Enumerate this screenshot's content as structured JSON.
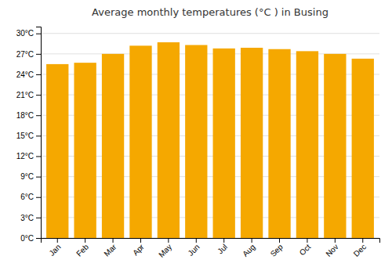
{
  "chart_data": {
    "type": "bar",
    "title": "Average monthly temperatures (°C ) in Busing",
    "categories": [
      "Jan",
      "Feb",
      "Mar",
      "Apr",
      "May",
      "Jun",
      "Jul",
      "Aug",
      "Sep",
      "Oct",
      "Nov",
      "Dec"
    ],
    "values": [
      25.5,
      25.7,
      27.0,
      28.2,
      28.7,
      28.3,
      27.8,
      27.9,
      27.7,
      27.4,
      27.0,
      26.3
    ],
    "color": "#F5A800",
    "ylim": [
      0,
      31
    ],
    "yticks": [
      {
        "value": 0,
        "label": "0°C"
      },
      {
        "value": 3,
        "label": "3°C"
      },
      {
        "value": 6,
        "label": "6°C"
      },
      {
        "value": 9,
        "label": "9°C"
      },
      {
        "value": 12,
        "label": "12°C"
      },
      {
        "value": 15,
        "label": "15°C"
      },
      {
        "value": 18,
        "label": "18°C"
      },
      {
        "value": 21,
        "label": "21°C"
      },
      {
        "value": 24,
        "label": "24°C"
      },
      {
        "value": 27,
        "label": "27°C"
      },
      {
        "value": 30,
        "label": "30°C"
      }
    ],
    "grid": true
  }
}
